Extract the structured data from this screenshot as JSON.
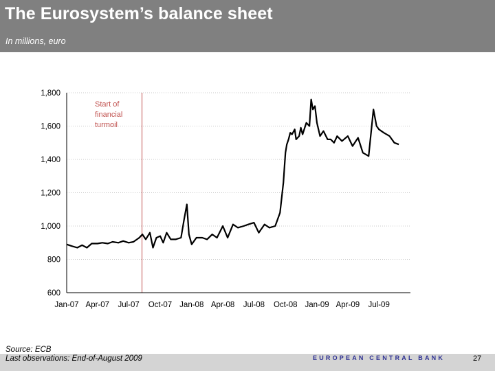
{
  "header": {
    "title": "The Eurosystem’s balance sheet",
    "subtitle": "In millions, euro"
  },
  "footer": {
    "source": "Source: ECB",
    "last_observations": "Last observations: End-of-August 2009",
    "logo_text": "EUROPEAN CENTRAL BANK",
    "page_number": "27"
  },
  "colors": {
    "header_bg": "#808080",
    "line": "#000000",
    "marker_line": "#c0504d",
    "annotation": "#c0504d",
    "gridline": "#c8c8c8",
    "footer_bg": "#d4d4d4",
    "logo": "#2e3192"
  },
  "chart_data": {
    "type": "line",
    "title": "",
    "xlabel": "",
    "ylabel": "",
    "ylim": [
      600,
      1800
    ],
    "yticks": [
      600,
      800,
      1000,
      1200,
      1400,
      1600,
      1800
    ],
    "ytick_labels": [
      "600",
      "800",
      "1,000",
      "1,200",
      "1,400",
      "1,600",
      "1,800"
    ],
    "xlim": [
      "2007-01-01",
      "2009-09-15"
    ],
    "xticks": [
      "2007-01-01",
      "2007-04-01",
      "2007-07-01",
      "2007-10-01",
      "2008-01-01",
      "2008-04-01",
      "2008-07-01",
      "2008-10-01",
      "2009-01-01",
      "2009-04-01",
      "2009-07-01"
    ],
    "xtick_labels": [
      "Jan-07",
      "Apr-07",
      "Jul-07",
      "Oct-07",
      "Jan-08",
      "Apr-08",
      "Jul-08",
      "Oct-08",
      "Jan-09",
      "Apr-09",
      "Jul-09"
    ],
    "grid": "horizontal dotted",
    "legend": "none",
    "annotation": {
      "text_lines": [
        "Start of",
        "financial",
        "turmoil"
      ],
      "date": "2007-08-09"
    },
    "series": [
      {
        "x": [
          "2007-01-01",
          "2007-01-15",
          "2007-02-01",
          "2007-02-15",
          "2007-03-01",
          "2007-03-15",
          "2007-04-01",
          "2007-04-15",
          "2007-05-01",
          "2007-05-15",
          "2007-06-01",
          "2007-06-15",
          "2007-07-01",
          "2007-07-15",
          "2007-08-01",
          "2007-08-10",
          "2007-08-20",
          "2007-09-01",
          "2007-09-10",
          "2007-09-20",
          "2007-10-01",
          "2007-10-10",
          "2007-10-20",
          "2007-11-01",
          "2007-11-15",
          "2007-12-01",
          "2007-12-10",
          "2007-12-18",
          "2007-12-24",
          "2008-01-01",
          "2008-01-15",
          "2008-02-01",
          "2008-02-15",
          "2008-03-01",
          "2008-03-15",
          "2008-04-01",
          "2008-04-15",
          "2008-05-01",
          "2008-05-15",
          "2008-06-01",
          "2008-06-15",
          "2008-07-01",
          "2008-07-15",
          "2008-08-01",
          "2008-08-15",
          "2008-09-01",
          "2008-09-15",
          "2008-09-25",
          "2008-10-01",
          "2008-10-05",
          "2008-10-10",
          "2008-10-15",
          "2008-10-20",
          "2008-10-28",
          "2008-11-01",
          "2008-11-10",
          "2008-11-15",
          "2008-11-20",
          "2008-12-01",
          "2008-12-10",
          "2008-12-15",
          "2008-12-20",
          "2008-12-26",
          "2009-01-01",
          "2009-01-10",
          "2009-01-20",
          "2009-02-01",
          "2009-02-10",
          "2009-02-20",
          "2009-03-01",
          "2009-03-15",
          "2009-04-01",
          "2009-04-15",
          "2009-05-01",
          "2009-05-15",
          "2009-06-01",
          "2009-06-15",
          "2009-06-24",
          "2009-07-01",
          "2009-07-15",
          "2009-08-01",
          "2009-08-15",
          "2009-08-28"
        ],
        "values": [
          890,
          880,
          870,
          885,
          870,
          895,
          895,
          900,
          895,
          905,
          900,
          910,
          900,
          905,
          930,
          950,
          920,
          960,
          870,
          930,
          940,
          900,
          960,
          920,
          920,
          930,
          1040,
          1130,
          950,
          890,
          930,
          930,
          920,
          950,
          930,
          1000,
          930,
          1010,
          990,
          1000,
          1010,
          1020,
          960,
          1010,
          990,
          1000,
          1080,
          1260,
          1440,
          1490,
          1520,
          1560,
          1550,
          1580,
          1520,
          1540,
          1590,
          1550,
          1620,
          1600,
          1760,
          1700,
          1720,
          1620,
          1540,
          1570,
          1520,
          1520,
          1500,
          1540,
          1510,
          1540,
          1480,
          1530,
          1440,
          1420,
          1700,
          1600,
          1580,
          1560,
          1540,
          1500,
          1490
        ]
      }
    ]
  }
}
